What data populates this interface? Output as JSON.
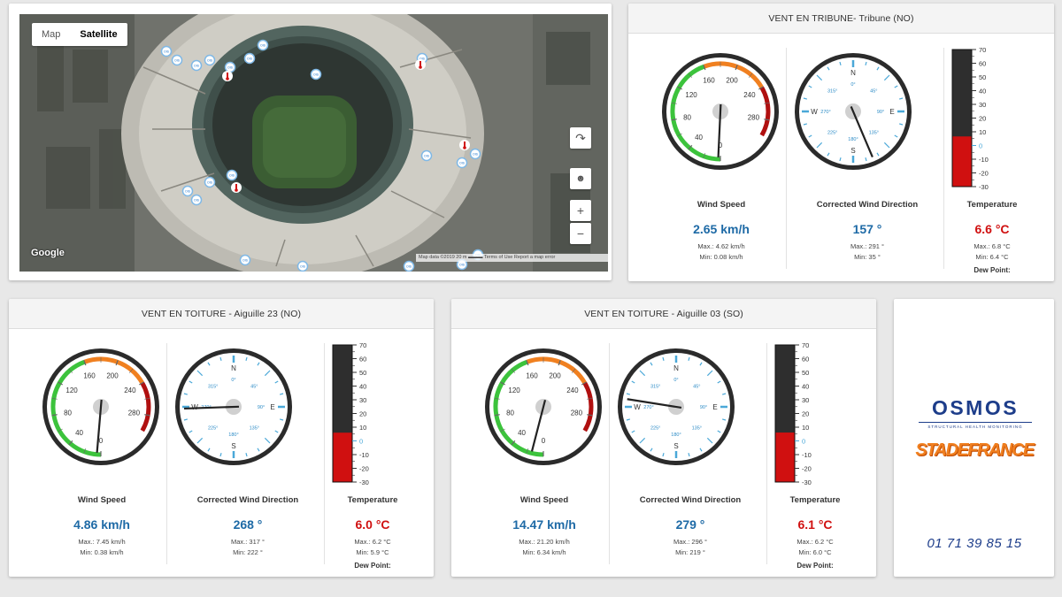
{
  "map": {
    "tab_map": "Map",
    "tab_satellite": "Satellite",
    "google": "Google",
    "footer": "Map data ©2019   20 m ▬▬▬   Terms of Use   Report a map error",
    "marker_label": "OIS"
  },
  "colors": {
    "accent_blue": "#1e6aa6",
    "temp_red": "#d01010",
    "gauge_green": "#3cc33c",
    "gauge_orange": "#f08020",
    "gauge_darkred": "#b01010"
  },
  "panels": [
    {
      "title": "VENT EN TRIBUNE- Tribune (NO)",
      "speed_label": "Wind Speed",
      "speed": "2.65 km/h",
      "speed_max": "Max.: 4.62 km/h",
      "speed_min": "Min: 0.08 km/h",
      "speed_needle_kmh": 2.65,
      "dir_label": "Corrected Wind Direction",
      "dir": "157 °",
      "dir_max": "Max.: 291 °",
      "dir_min": "Min: 35 °",
      "dir_deg": 157,
      "temp_label": "Temperature",
      "temp": "6.6 °C",
      "temp_max": "Max.: 6.8 °C",
      "temp_min": "Min: 6.4 °C",
      "temp_c": 6.6,
      "dew": "Dew Point:"
    },
    {
      "title": "VENT EN TOITURE - Aiguille 23 (NO)",
      "speed_label": "Wind Speed",
      "speed": "4.86 km/h",
      "speed_max": "Max.: 7.45 km/h",
      "speed_min": "Min: 0.38 km/h",
      "speed_needle_kmh": 4.86,
      "dir_label": "Corrected Wind Direction",
      "dir": "268 °",
      "dir_max": "Max.: 317 °",
      "dir_min": "Min: 222 °",
      "dir_deg": 268,
      "temp_label": "Temperature",
      "temp": "6.0 °C",
      "temp_max": "Max.: 6.2 °C",
      "temp_min": "Min: 5.9 °C",
      "temp_c": 6.0,
      "dew": "Dew Point:"
    },
    {
      "title": "VENT EN TOITURE - Aiguille 03 (SO)",
      "speed_label": "Wind Speed",
      "speed": "14.47 km/h",
      "speed_max": "Max.: 21.20 km/h",
      "speed_min": "Min: 6.34 km/h",
      "speed_needle_kmh": 14.47,
      "dir_label": "Corrected Wind Direction",
      "dir": "279 °",
      "dir_max": "Max.: 296 °",
      "dir_min": "Min: 219 °",
      "dir_deg": 279,
      "temp_label": "Temperature",
      "temp": "6.1 °C",
      "temp_max": "Max.: 6.2 °C",
      "temp_min": "Min: 6.0 °C",
      "temp_c": 6.1,
      "dew": "Dew Point:"
    }
  ],
  "gauge": {
    "speed_ticks": [
      "0",
      "40",
      "80",
      "120",
      "160",
      "200",
      "240",
      "280"
    ],
    "speed_max_kmh": 300,
    "compass_cardinals": [
      "N",
      "E",
      "S",
      "W"
    ],
    "compass_degrees": [
      "0°",
      "45°",
      "90°",
      "135°",
      "180°",
      "225°",
      "270°",
      "315°"
    ],
    "thermo_ticks": [
      "70",
      "60",
      "50",
      "40",
      "30",
      "20",
      "10",
      "0",
      "-10",
      "-20",
      "-30"
    ],
    "thermo_range": [
      -30,
      70
    ]
  },
  "logos": {
    "osmos": "OSMOS",
    "osmos_sub": "STRUCTURAL HEALTH MONITORING",
    "stadefrance": "STADEFRANCE",
    "phone": "01 71 39 85 15"
  }
}
